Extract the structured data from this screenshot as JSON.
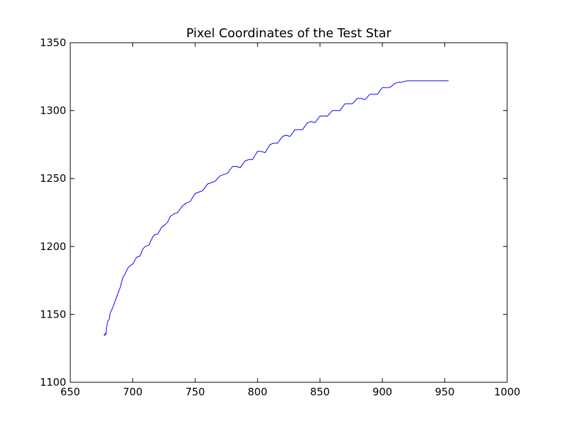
{
  "chart_data": {
    "type": "line",
    "title": "Pixel Coordinates of the Test Star",
    "xlabel": "",
    "ylabel": "",
    "xlim": [
      650,
      1000
    ],
    "ylim": [
      1100,
      1350
    ],
    "xticks": [
      "650",
      "700",
      "750",
      "800",
      "850",
      "900",
      "950",
      "1000"
    ],
    "yticks": [
      "1100",
      "1150",
      "1200",
      "1250",
      "1300",
      "1350"
    ],
    "grid": false,
    "line_color": "#0000ff",
    "series": [
      {
        "x": [
          677,
          678,
          678.5,
          679,
          680,
          681,
          682,
          683,
          684,
          686,
          688,
          690,
          692,
          694,
          696,
          698,
          700,
          703,
          706,
          708,
          710,
          713,
          716,
          718,
          720,
          723,
          726,
          728,
          730,
          733,
          736,
          740,
          743,
          746,
          750,
          753,
          756,
          760,
          763,
          766,
          770,
          773,
          776,
          780,
          783,
          786,
          790,
          793,
          796,
          800,
          803,
          806,
          810,
          813,
          816,
          820,
          823,
          826,
          830,
          833,
          836,
          840,
          843,
          846,
          850,
          853,
          856,
          860,
          863,
          866,
          870,
          873,
          876,
          880,
          883,
          886,
          890,
          893,
          896,
          900,
          903,
          906,
          910,
          913,
          916,
          920,
          923,
          926,
          930,
          933,
          936,
          940,
          943,
          946,
          950,
          953
        ],
        "y": [
          1134,
          1136,
          1135,
          1140,
          1145,
          1146,
          1151,
          1153,
          1155,
          1160,
          1165,
          1170,
          1177,
          1180,
          1184,
          1186,
          1187,
          1192,
          1193,
          1198,
          1200,
          1201,
          1207,
          1209,
          1209,
          1214,
          1216,
          1218,
          1222,
          1224,
          1225,
          1230,
          1232,
          1233,
          1239,
          1240,
          1241,
          1246,
          1247,
          1248,
          1252,
          1253,
          1254,
          1259,
          1259,
          1258,
          1263,
          1264,
          1264,
          1270,
          1270,
          1269,
          1275,
          1276,
          1276,
          1281,
          1282,
          1281,
          1286,
          1286,
          1286,
          1291,
          1292,
          1291,
          1296,
          1296,
          1296,
          1300,
          1300,
          1300,
          1305,
          1305,
          1305,
          1309,
          1309,
          1308,
          1312,
          1312,
          1312,
          1317,
          1317,
          1317,
          1320,
          1321,
          1321,
          1322,
          1322,
          1322,
          1322,
          1322,
          1322,
          1322,
          1322,
          1322,
          1322,
          1322
        ]
      }
    ]
  }
}
